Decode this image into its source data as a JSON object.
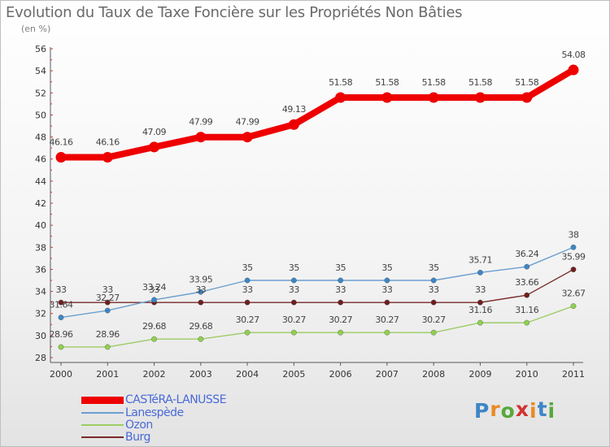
{
  "title": "Evolution du Taux de Taxe Foncière sur les Propriétés Non Bâties",
  "unit_label": "(en %)",
  "logo": {
    "text": "Proxiti",
    "letter_colors": [
      "#3d86c6",
      "#e98a23",
      "#57a83b",
      "#d2342f",
      "#e98a23",
      "#3d86c6",
      "#57a83b"
    ]
  },
  "chart_data": {
    "type": "line",
    "title": "Evolution du Taux de Taxe Foncière sur les Propriétés Non Bâties",
    "ylabel": "(en %)",
    "xlabel": "",
    "x": [
      "2000",
      "2001",
      "2002",
      "2003",
      "2004",
      "2005",
      "2006",
      "2007",
      "2008",
      "2009",
      "2010",
      "2011"
    ],
    "ylim": [
      28,
      56
    ],
    "yticks": [
      "28",
      "30",
      "32",
      "34",
      "36",
      "38",
      "40",
      "42",
      "44",
      "46",
      "48",
      "50",
      "52",
      "54",
      "56"
    ],
    "grid": false,
    "legend_position": "bottom-left",
    "series": [
      {
        "name": "CASTéRA-LANUSSE",
        "color": "#ee0000",
        "values": [
          46.16,
          46.16,
          47.09,
          47.99,
          47.99,
          49.13,
          51.58,
          51.58,
          51.58,
          51.58,
          51.58,
          54.08
        ],
        "labels": [
          "46.16",
          "46.16",
          "47.09",
          "47.99",
          "47.99",
          "49.13",
          "51.58",
          "51.58",
          "51.58",
          "51.58",
          "51.58",
          "54.08"
        ]
      },
      {
        "name": "Lanespède",
        "color": "#6a9fcf",
        "marker_color": "#3d86c6",
        "values": [
          31.64,
          32.27,
          33.24,
          33.95,
          35,
          35,
          35,
          35,
          35,
          35.71,
          36.24,
          38
        ],
        "labels": [
          "31.64",
          "32.27",
          "33.24",
          "33.95",
          "35",
          "35",
          "35",
          "35",
          "35",
          "35.71",
          "36.24",
          "38"
        ]
      },
      {
        "name": "Ozon",
        "color": "#9ccc65",
        "marker_color": "#8fd14f",
        "values": [
          28.96,
          28.96,
          29.68,
          29.68,
          30.27,
          30.27,
          30.27,
          30.27,
          30.27,
          31.16,
          31.16,
          32.67
        ],
        "labels": [
          "28.96",
          "28.96",
          "29.68",
          "29.68",
          "30.27",
          "30.27",
          "30.27",
          "30.27",
          "30.27",
          "31.16",
          "31.16",
          "32.67"
        ]
      },
      {
        "name": "Burg",
        "color": "#7a2a2a",
        "marker_color": "#6e1f1f",
        "values": [
          33,
          33,
          33,
          33,
          33,
          33,
          33,
          33,
          33,
          33,
          33.66,
          35.99
        ],
        "labels": [
          "33",
          "33",
          "33",
          "33",
          "33",
          "33",
          "33",
          "33",
          "33",
          "33",
          "33.66",
          "35.99"
        ]
      }
    ]
  }
}
